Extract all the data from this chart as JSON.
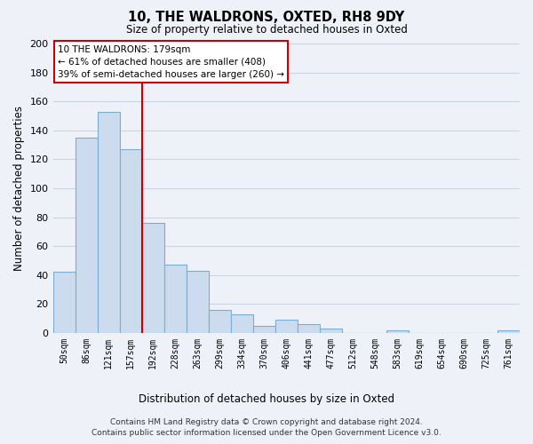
{
  "title": "10, THE WALDRONS, OXTED, RH8 9DY",
  "subtitle": "Size of property relative to detached houses in Oxted",
  "xlabel": "Distribution of detached houses by size in Oxted",
  "ylabel": "Number of detached properties",
  "footer_line1": "Contains HM Land Registry data © Crown copyright and database right 2024.",
  "footer_line2": "Contains public sector information licensed under the Open Government Licence v3.0.",
  "bar_labels": [
    "50sqm",
    "86sqm",
    "121sqm",
    "157sqm",
    "192sqm",
    "228sqm",
    "263sqm",
    "299sqm",
    "334sqm",
    "370sqm",
    "406sqm",
    "441sqm",
    "477sqm",
    "512sqm",
    "548sqm",
    "583sqm",
    "619sqm",
    "654sqm",
    "690sqm",
    "725sqm",
    "761sqm"
  ],
  "bar_values": [
    42,
    135,
    153,
    127,
    76,
    47,
    43,
    16,
    13,
    5,
    9,
    6,
    3,
    0,
    0,
    2,
    0,
    0,
    0,
    0,
    2
  ],
  "bar_color": "#ccdcee",
  "bar_edge_color": "#7aadd4",
  "ylim": [
    0,
    200
  ],
  "yticks": [
    0,
    20,
    40,
    60,
    80,
    100,
    120,
    140,
    160,
    180,
    200
  ],
  "vline_x": 3.5,
  "vline_color": "#cc0000",
  "annotation_line1": "10 THE WALDRONS: 179sqm",
  "annotation_line2": "← 61% of detached houses are smaller (408)",
  "annotation_line3": "39% of semi-detached houses are larger (260) →",
  "annotation_box_color": "#ffffff",
  "annotation_box_edge": "#cc0000",
  "grid_color": "#c8d4e4",
  "background_color": "#eef2f8"
}
